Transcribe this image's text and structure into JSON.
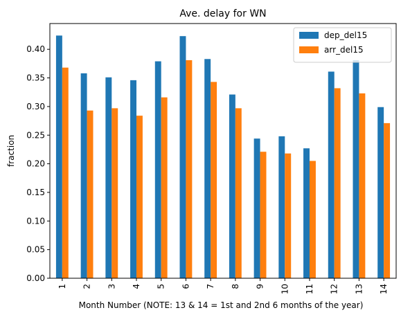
{
  "chart_data": {
    "type": "bar",
    "title": "Ave. delay for WN",
    "xlabel": "Month Number (NOTE: 13 & 14 = 1st and 2nd 6 months of the year)",
    "ylabel": "fraction",
    "categories": [
      "1",
      "2",
      "3",
      "4",
      "5",
      "6",
      "7",
      "8",
      "9",
      "10",
      "11",
      "12",
      "13",
      "14"
    ],
    "series": [
      {
        "name": "dep_del15",
        "color": "#1f77b4",
        "values": [
          0.424,
          0.358,
          0.351,
          0.346,
          0.379,
          0.423,
          0.383,
          0.321,
          0.244,
          0.248,
          0.227,
          0.361,
          0.381,
          0.299
        ]
      },
      {
        "name": "arr_del15",
        "color": "#ff7f0e",
        "values": [
          0.368,
          0.293,
          0.297,
          0.284,
          0.316,
          0.381,
          0.343,
          0.297,
          0.221,
          0.218,
          0.205,
          0.332,
          0.323,
          0.271
        ]
      }
    ],
    "ylim": [
      0,
      0.445
    ],
    "yticks": [
      "0.00",
      "0.05",
      "0.10",
      "0.15",
      "0.20",
      "0.25",
      "0.30",
      "0.35",
      "0.40"
    ],
    "grid": false,
    "legend": "upper-right"
  }
}
